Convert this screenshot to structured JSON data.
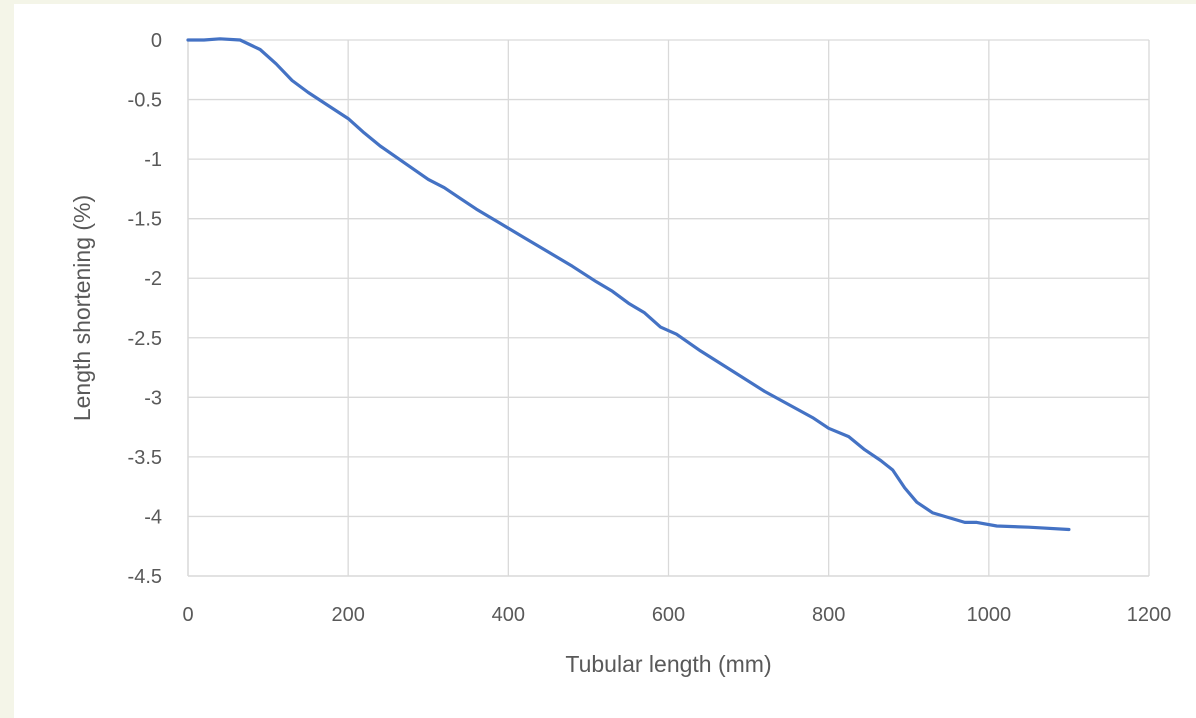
{
  "chart_data": {
    "type": "line",
    "title": "",
    "xlabel": "Tubular length (mm)",
    "ylabel": "Length shortening (%)",
    "xlim": [
      0,
      1200
    ],
    "ylim": [
      -4.5,
      0
    ],
    "x_ticks": [
      "0",
      "200",
      "400",
      "600",
      "800",
      "1000",
      "1200"
    ],
    "y_ticks": [
      "0",
      "-0.5",
      "-1",
      "-1.5",
      "-2",
      "-2.5",
      "-3",
      "-3.5",
      "-4",
      "-4.5"
    ],
    "grid": true,
    "legend": "none",
    "series": [
      {
        "color": "#4472c4",
        "x": [
          0,
          20,
          40,
          65,
          90,
          110,
          130,
          150,
          175,
          200,
          220,
          240,
          270,
          300,
          320,
          340,
          360,
          390,
          420,
          450,
          480,
          510,
          530,
          550,
          570,
          590,
          610,
          640,
          680,
          720,
          750,
          780,
          800,
          825,
          845,
          865,
          880,
          895,
          910,
          930,
          950,
          970,
          985,
          1010,
          1050,
          1100
        ],
        "y": [
          0,
          0,
          0.01,
          0,
          -0.08,
          -0.2,
          -0.34,
          -0.44,
          -0.55,
          -0.66,
          -0.78,
          -0.89,
          -1.03,
          -1.17,
          -1.24,
          -1.33,
          -1.42,
          -1.54,
          -1.66,
          -1.78,
          -1.9,
          -2.03,
          -2.11,
          -2.21,
          -2.29,
          -2.41,
          -2.47,
          -2.61,
          -2.78,
          -2.95,
          -3.06,
          -3.17,
          -3.26,
          -3.33,
          -3.44,
          -3.53,
          -3.61,
          -3.76,
          -3.88,
          -3.97,
          -4.01,
          -4.05,
          -4.05,
          -4.08,
          -4.09,
          -4.11
        ]
      }
    ]
  }
}
